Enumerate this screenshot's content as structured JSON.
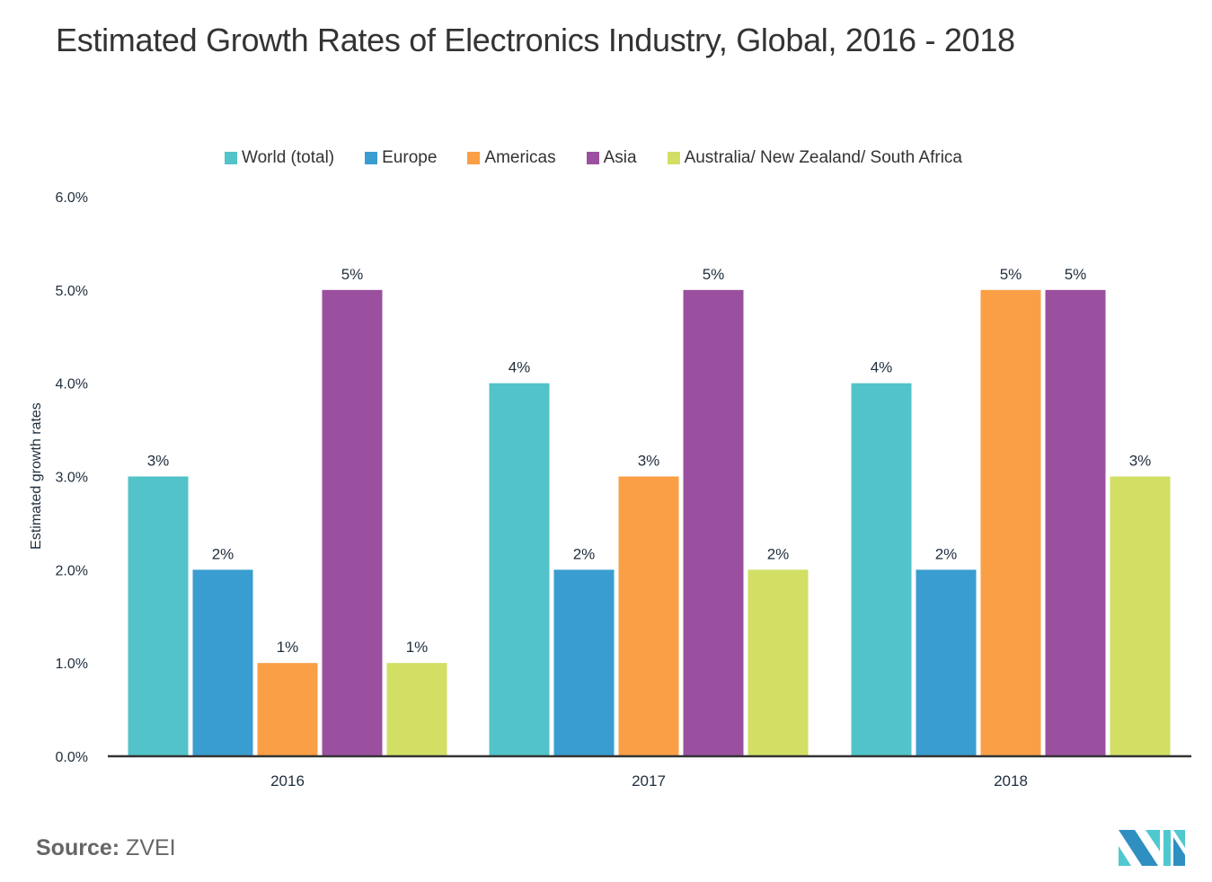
{
  "chart_data": {
    "type": "bar",
    "title": "Estimated Growth Rates of Electronics Industry, Global, 2016 - 2018",
    "xlabel": "",
    "ylabel": "Estimated growth rates",
    "ylim": [
      0,
      6
    ],
    "yticks": [
      "0.0%",
      "1.0%",
      "2.0%",
      "3.0%",
      "4.0%",
      "5.0%",
      "6.0%"
    ],
    "grid": false,
    "legend_position": "top-center",
    "categories": [
      "2016",
      "2017",
      "2018"
    ],
    "series": [
      {
        "name": "World (total)",
        "color": "#52c3c8",
        "values": [
          3,
          4,
          4
        ],
        "labels": [
          "3%",
          "4%",
          "4%"
        ]
      },
      {
        "name": "Europe",
        "color": "#3a9dd0",
        "values": [
          2,
          2,
          2
        ],
        "labels": [
          "2%",
          "2%",
          "2%"
        ]
      },
      {
        "name": "Americas",
        "color": "#fa9f45",
        "values": [
          1,
          3,
          5
        ],
        "labels": [
          "1%",
          "3%",
          "5%"
        ]
      },
      {
        "name": "Asia",
        "color": "#9b509f",
        "values": [
          5,
          5,
          5
        ],
        "labels": [
          "5%",
          "5%",
          "5%"
        ]
      },
      {
        "name": "Australia/ New Zealand/ South Africa",
        "color": "#d2df64",
        "values": [
          1,
          2,
          3
        ],
        "labels": [
          "1%",
          "2%",
          "3%"
        ]
      }
    ]
  },
  "source": {
    "label": "Source:",
    "value": "ZVEI"
  },
  "logo": {
    "icon": "mordor-intelligence-logo-icon",
    "colors": [
      "#2e8fc0",
      "#4fc9cf"
    ]
  }
}
